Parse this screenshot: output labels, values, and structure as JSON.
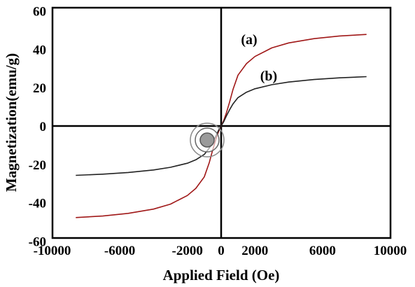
{
  "chart_data": {
    "type": "line",
    "xlabel": "Applied Field (Oe)",
    "ylabel": "Magnetization(emu/g)",
    "xlim": [
      -10000,
      10000
    ],
    "ylim": [
      -60,
      60
    ],
    "x_ticks": [
      -10000,
      -6000,
      -2000,
      0,
      2000,
      6000,
      10000
    ],
    "y_ticks": [
      60,
      40,
      20,
      0,
      -20,
      -40,
      -60
    ],
    "grid": false,
    "series": [
      {
        "name": "(a)",
        "color": "#a01818",
        "points": [
          [
            -8600,
            -47.7
          ],
          [
            -7000,
            -46.9
          ],
          [
            -5500,
            -45.5
          ],
          [
            -4000,
            -43.3
          ],
          [
            -3000,
            -40.7
          ],
          [
            -2000,
            -36.2
          ],
          [
            -1500,
            -32.5
          ],
          [
            -1000,
            -26.5
          ],
          [
            -700,
            -19.0
          ],
          [
            -500,
            -12.5
          ],
          [
            -300,
            -6.5
          ],
          [
            -150,
            -2.8
          ],
          [
            0,
            0
          ],
          [
            150,
            2.8
          ],
          [
            300,
            6.5
          ],
          [
            500,
            12.5
          ],
          [
            700,
            19.0
          ],
          [
            1000,
            26.5
          ],
          [
            1500,
            32.5
          ],
          [
            2000,
            36.2
          ],
          [
            3000,
            40.7
          ],
          [
            4000,
            43.3
          ],
          [
            5500,
            45.5
          ],
          [
            7000,
            46.9
          ],
          [
            8600,
            47.7
          ]
        ]
      },
      {
        "name": "(b)",
        "color": "#222222",
        "points": [
          [
            -8600,
            -25.7
          ],
          [
            -7000,
            -25.1
          ],
          [
            -5500,
            -24.2
          ],
          [
            -4000,
            -22.9
          ],
          [
            -3000,
            -21.5
          ],
          [
            -2000,
            -19.4
          ],
          [
            -1500,
            -17.6
          ],
          [
            -1000,
            -14.8
          ],
          [
            -700,
            -11.5
          ],
          [
            -500,
            -8.5
          ],
          [
            -300,
            -5.0
          ],
          [
            -150,
            -2.2
          ],
          [
            0,
            0
          ],
          [
            150,
            2.2
          ],
          [
            300,
            5.0
          ],
          [
            500,
            8.5
          ],
          [
            700,
            11.5
          ],
          [
            1000,
            14.8
          ],
          [
            1500,
            17.6
          ],
          [
            2000,
            19.4
          ],
          [
            3000,
            21.5
          ],
          [
            4000,
            22.9
          ],
          [
            5500,
            24.2
          ],
          [
            7000,
            25.1
          ],
          [
            8600,
            25.7
          ]
        ]
      }
    ]
  }
}
